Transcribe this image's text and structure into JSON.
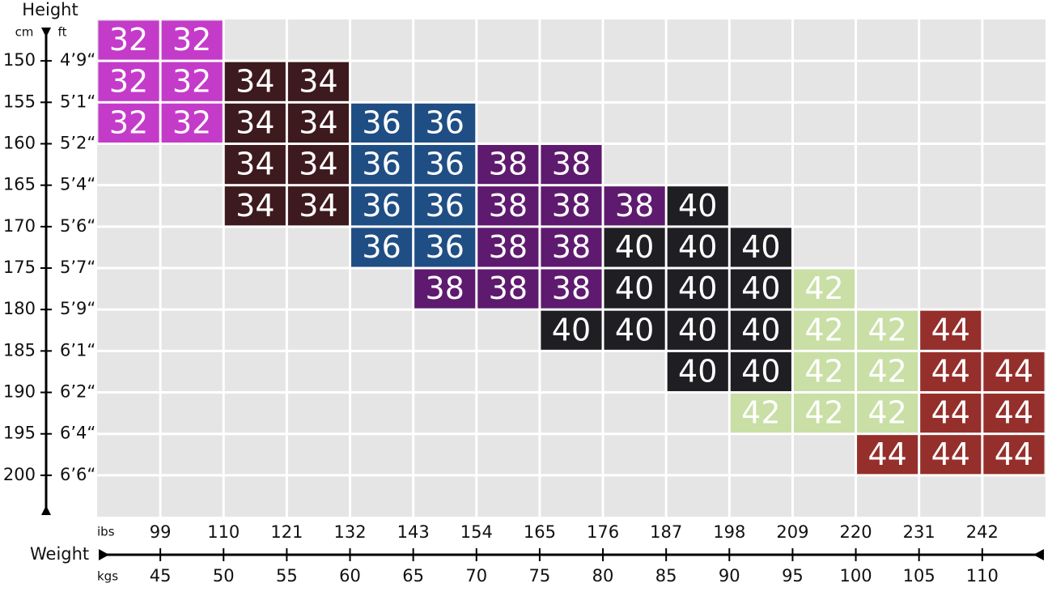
{
  "header": {
    "height": "Height",
    "cm": "cm",
    "ft": "ft",
    "weight": "Weight",
    "lbs": "ibs",
    "kgs": "kgs"
  },
  "cm_labels": [
    150,
    155,
    160,
    165,
    170,
    175,
    180,
    185,
    190,
    195,
    200
  ],
  "ft_labels": [
    "4’9“",
    "5’1“",
    "5’2“",
    "5’4“",
    "5’6“",
    "5’7“",
    "5’9“",
    "6’1“",
    "6’2“",
    "6’4“",
    "6’6“"
  ],
  "lbs_labels": [
    99,
    110,
    121,
    132,
    143,
    154,
    165,
    176,
    187,
    198,
    209,
    220,
    231,
    242
  ],
  "kgs_labels": [
    45,
    50,
    55,
    60,
    65,
    70,
    75,
    80,
    85,
    90,
    95,
    100,
    105,
    110
  ],
  "size_colors": {
    "32": "#c43bc9",
    "34": "#3d1a1e",
    "36": "#1f4e84",
    "38": "#5e1a6e",
    "40": "#1f1f23",
    "42": "#c9dfa5",
    "44": "#952f2b"
  },
  "rows": [
    {
      "cells": [
        "32",
        "32",
        null,
        null,
        null,
        null,
        null,
        null,
        null,
        null,
        null,
        null,
        null,
        null,
        null
      ]
    },
    {
      "cells": [
        "32",
        "32",
        "34",
        "34",
        null,
        null,
        null,
        null,
        null,
        null,
        null,
        null,
        null,
        null,
        null
      ]
    },
    {
      "cells": [
        "32",
        "32",
        "34",
        "34",
        "36",
        "36",
        null,
        null,
        null,
        null,
        null,
        null,
        null,
        null,
        null
      ]
    },
    {
      "cells": [
        null,
        null,
        "34",
        "34",
        "36",
        "36",
        "38",
        "38",
        null,
        null,
        null,
        null,
        null,
        null,
        null
      ]
    },
    {
      "cells": [
        null,
        null,
        "34",
        "34",
        "36",
        "36",
        "38",
        "38",
        "38",
        "40",
        null,
        null,
        null,
        null,
        null
      ]
    },
    {
      "cells": [
        null,
        null,
        null,
        null,
        "36",
        "36",
        "38",
        "38",
        "40",
        "40",
        "40",
        null,
        null,
        null,
        null
      ]
    },
    {
      "cells": [
        null,
        null,
        null,
        null,
        null,
        "38",
        "38",
        "38",
        "40",
        "40",
        "40",
        "42",
        null,
        null,
        null
      ]
    },
    {
      "cells": [
        null,
        null,
        null,
        null,
        null,
        null,
        null,
        "40",
        "40",
        "40",
        "40",
        "42",
        "42",
        "44",
        null
      ]
    },
    {
      "cells": [
        null,
        null,
        null,
        null,
        null,
        null,
        null,
        null,
        null,
        "40",
        "40",
        "42",
        "42",
        "44",
        "44"
      ]
    },
    {
      "cells": [
        null,
        null,
        null,
        null,
        null,
        null,
        null,
        null,
        null,
        null,
        "42",
        "42",
        "42",
        "44",
        "44"
      ]
    },
    {
      "cells": [
        null,
        null,
        null,
        null,
        null,
        null,
        null,
        null,
        null,
        null,
        null,
        null,
        "44",
        "44",
        "44"
      ]
    },
    {
      "cells": [
        null,
        null,
        null,
        null,
        null,
        null,
        null,
        null,
        null,
        null,
        null,
        null,
        null,
        null,
        null
      ]
    }
  ]
}
